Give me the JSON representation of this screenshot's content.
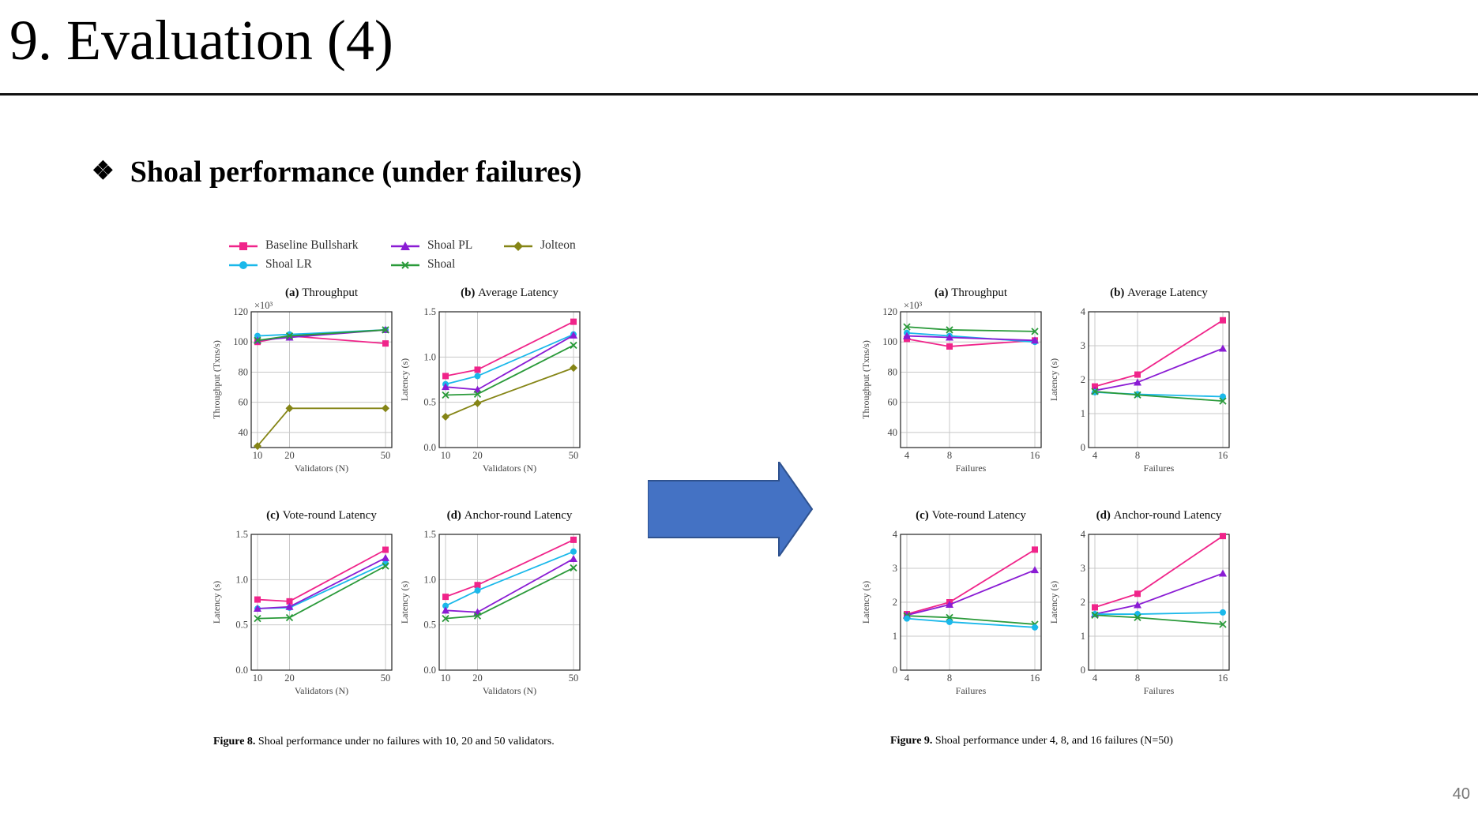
{
  "slide": {
    "title": "9. Evaluation (4)",
    "bullet": "Shoal performance (under failures)",
    "bullet_icon": "diamond-bullet-icon",
    "page_number": "40"
  },
  "series_styles": [
    {
      "name": "Baseline Bullshark",
      "color": "#f0248a",
      "marker": "square"
    },
    {
      "name": "Shoal PL",
      "color": "#8a1cd4",
      "marker": "triangle"
    },
    {
      "name": "Jolteon",
      "color": "#858516",
      "marker": "diamond"
    },
    {
      "name": "Shoal LR",
      "color": "#1ab8ea",
      "marker": "circle"
    },
    {
      "name": "Shoal",
      "color": "#2a9a3a",
      "marker": "x"
    }
  ],
  "legend": [
    {
      "label": "Baseline Bullshark"
    },
    {
      "label": "Shoal PL"
    },
    {
      "label": "Jolteon"
    },
    {
      "label": "Shoal LR"
    },
    {
      "label": "Shoal"
    }
  ],
  "figures": [
    {
      "caption_label": "Figure 8.",
      "caption_text": " Shoal performance under no failures with 10, 20 and 50 validators."
    },
    {
      "caption_label": "Figure 9.",
      "caption_text": " Shoal performance under 4, 8, and 16 failures (N=50)"
    }
  ],
  "chart_data": [
    {
      "figure": "Figure 8",
      "type": "line",
      "title": "(a) Throughput",
      "xlabel": "Validators (N)",
      "ylabel": "Throughput (Txns/s)",
      "y_multiplier": "×10³",
      "x": [
        10,
        20,
        50
      ],
      "xlim": [
        10,
        50
      ],
      "ylim": [
        30,
        120
      ],
      "yticks": [
        40,
        60,
        80,
        100,
        120
      ],
      "grid": true,
      "series": [
        {
          "name": "Baseline Bullshark",
          "values": [
            100,
            104,
            99
          ]
        },
        {
          "name": "Shoal LR",
          "values": [
            104,
            105,
            108
          ]
        },
        {
          "name": "Shoal PL",
          "values": [
            101,
            103,
            108
          ]
        },
        {
          "name": "Shoal",
          "values": [
            101,
            104,
            108
          ]
        },
        {
          "name": "Jolteon",
          "values": [
            31,
            56,
            56
          ]
        }
      ]
    },
    {
      "figure": "Figure 8",
      "type": "line",
      "title": "(b) Average Latency",
      "xlabel": "Validators (N)",
      "ylabel": "Latency (s)",
      "x": [
        10,
        20,
        50
      ],
      "xlim": [
        10,
        50
      ],
      "ylim": [
        0,
        1.5
      ],
      "yticks": [
        0.0,
        0.5,
        1.0,
        1.5
      ],
      "grid": true,
      "series": [
        {
          "name": "Baseline Bullshark",
          "values": [
            0.79,
            0.86,
            1.39
          ]
        },
        {
          "name": "Shoal LR",
          "values": [
            0.7,
            0.79,
            1.25
          ]
        },
        {
          "name": "Shoal PL",
          "values": [
            0.67,
            0.64,
            1.24
          ]
        },
        {
          "name": "Shoal",
          "values": [
            0.58,
            0.59,
            1.13
          ]
        },
        {
          "name": "Jolteon",
          "values": [
            0.34,
            0.49,
            0.88
          ]
        }
      ]
    },
    {
      "figure": "Figure 8",
      "type": "line",
      "title": "(c) Vote-round Latency",
      "xlabel": "Validators (N)",
      "ylabel": "Latency (s)",
      "x": [
        10,
        20,
        50
      ],
      "xlim": [
        10,
        50
      ],
      "ylim": [
        0,
        1.5
      ],
      "yticks": [
        0.0,
        0.5,
        1.0,
        1.5
      ],
      "grid": true,
      "series": [
        {
          "name": "Baseline Bullshark",
          "values": [
            0.78,
            0.76,
            1.33
          ]
        },
        {
          "name": "Shoal LR",
          "values": [
            0.68,
            0.69,
            1.18
          ]
        },
        {
          "name": "Shoal PL",
          "values": [
            0.68,
            0.7,
            1.24
          ]
        },
        {
          "name": "Shoal",
          "values": [
            0.57,
            0.58,
            1.15
          ]
        }
      ]
    },
    {
      "figure": "Figure 8",
      "type": "line",
      "title": "(d) Anchor-round Latency",
      "xlabel": "Validators (N)",
      "ylabel": "Latency (s)",
      "x": [
        10,
        20,
        50
      ],
      "xlim": [
        10,
        50
      ],
      "ylim": [
        0,
        1.5
      ],
      "yticks": [
        0.0,
        0.5,
        1.0,
        1.5
      ],
      "grid": true,
      "series": [
        {
          "name": "Baseline Bullshark",
          "values": [
            0.81,
            0.94,
            1.44
          ]
        },
        {
          "name": "Shoal LR",
          "values": [
            0.71,
            0.88,
            1.31
          ]
        },
        {
          "name": "Shoal PL",
          "values": [
            0.66,
            0.64,
            1.23
          ]
        },
        {
          "name": "Shoal",
          "values": [
            0.57,
            0.6,
            1.13
          ]
        }
      ]
    },
    {
      "figure": "Figure 9",
      "type": "line",
      "title": "(a) Throughput",
      "xlabel": "Failures",
      "ylabel": "Throughput (Txns/s)",
      "y_multiplier": "×10³",
      "x": [
        4,
        8,
        16
      ],
      "xlim": [
        4,
        16
      ],
      "ylim": [
        30,
        120
      ],
      "yticks": [
        40,
        60,
        80,
        100,
        120
      ],
      "grid": true,
      "series": [
        {
          "name": "Baseline Bullshark",
          "values": [
            102,
            97,
            101
          ]
        },
        {
          "name": "Shoal LR",
          "values": [
            106,
            104,
            100
          ]
        },
        {
          "name": "Shoal PL",
          "values": [
            104,
            103,
            101
          ]
        },
        {
          "name": "Shoal",
          "values": [
            110,
            108,
            107
          ]
        }
      ]
    },
    {
      "figure": "Figure 9",
      "type": "line",
      "title": "(b) Average Latency",
      "xlabel": "Failures",
      "ylabel": "Latency (s)",
      "x": [
        4,
        8,
        16
      ],
      "xlim": [
        4,
        16
      ],
      "ylim": [
        0,
        4
      ],
      "yticks": [
        0,
        1,
        2,
        3,
        4
      ],
      "grid": true,
      "series": [
        {
          "name": "Baseline Bullshark",
          "values": [
            1.8,
            2.15,
            3.75
          ]
        },
        {
          "name": "Shoal PL",
          "values": [
            1.68,
            1.92,
            2.92
          ]
        },
        {
          "name": "Shoal LR",
          "values": [
            1.63,
            1.57,
            1.5
          ]
        },
        {
          "name": "Shoal",
          "values": [
            1.65,
            1.55,
            1.37
          ]
        }
      ]
    },
    {
      "figure": "Figure 9",
      "type": "line",
      "title": "(c) Vote-round Latency",
      "xlabel": "Failures",
      "ylabel": "Latency (s)",
      "x": [
        4,
        8,
        16
      ],
      "xlim": [
        4,
        16
      ],
      "ylim": [
        0,
        4
      ],
      "yticks": [
        0,
        1,
        2,
        3,
        4
      ],
      "grid": true,
      "series": [
        {
          "name": "Baseline Bullshark",
          "values": [
            1.65,
            2.0,
            3.55
          ]
        },
        {
          "name": "Shoal PL",
          "values": [
            1.62,
            1.93,
            2.95
          ]
        },
        {
          "name": "Shoal",
          "values": [
            1.6,
            1.55,
            1.35
          ]
        },
        {
          "name": "Shoal LR",
          "values": [
            1.52,
            1.42,
            1.26
          ]
        }
      ]
    },
    {
      "figure": "Figure 9",
      "type": "line",
      "title": "(d) Anchor-round Latency",
      "xlabel": "Failures",
      "ylabel": "Latency (s)",
      "x": [
        4,
        8,
        16
      ],
      "xlim": [
        4,
        16
      ],
      "ylim": [
        0,
        4
      ],
      "yticks": [
        0,
        1,
        2,
        3,
        4
      ],
      "grid": true,
      "series": [
        {
          "name": "Baseline Bullshark",
          "values": [
            1.85,
            2.25,
            3.95
          ]
        },
        {
          "name": "Shoal PL",
          "values": [
            1.65,
            1.92,
            2.85
          ]
        },
        {
          "name": "Shoal LR",
          "values": [
            1.65,
            1.65,
            1.7
          ]
        },
        {
          "name": "Shoal",
          "values": [
            1.62,
            1.55,
            1.35
          ]
        }
      ]
    }
  ]
}
